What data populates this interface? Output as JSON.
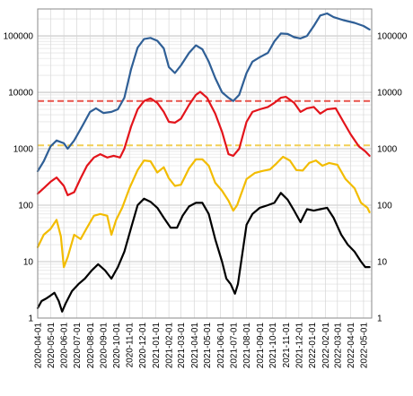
{
  "chart_data": {
    "type": "line",
    "title": "",
    "xlabel": "",
    "ylabel": "",
    "y_scale": "log",
    "ylim": [
      1,
      300000
    ],
    "xlim": [
      "2020-04-01",
      "2022-05-20"
    ],
    "y_ticks": [
      1,
      10,
      100,
      1000,
      10000,
      100000
    ],
    "y_tick_labels": [
      "1",
      "10",
      "100",
      "1000",
      "10000",
      "100000"
    ],
    "y_ticks_both_sides": true,
    "grid": true,
    "legend": "none",
    "x_tick_labels": [
      "2020-04-01",
      "2020-05-01",
      "2020-06-01",
      "2020-07-01",
      "2020-08-01",
      "2020-09-01",
      "2020-10-01",
      "2020-11-01",
      "2020-12-01",
      "2021-01-01",
      "2021-02-01",
      "2021-03-01",
      "2021-04-01",
      "2021-05-01",
      "2021-06-01",
      "2021-07-01",
      "2021-08-01",
      "2021-09-01",
      "2021-10-01",
      "2021-11-01",
      "2021-12-01",
      "2022-01-01",
      "2022-02-01",
      "2022-03-01",
      "2022-04-01",
      "2022-05-01"
    ],
    "reference_lines": [
      {
        "y": 7000,
        "color": "#e8524a",
        "style": "dashed"
      },
      {
        "y": 1150,
        "color": "#f2cf55",
        "style": "dashed"
      }
    ],
    "series": [
      {
        "color": "#2f5f96",
        "points": [
          [
            "2020-04-01",
            400
          ],
          [
            "2020-04-15",
            600
          ],
          [
            "2020-05-01",
            1100
          ],
          [
            "2020-05-15",
            1400
          ],
          [
            "2020-06-01",
            1250
          ],
          [
            "2020-06-10",
            1000
          ],
          [
            "2020-06-25",
            1400
          ],
          [
            "2020-07-15",
            2600
          ],
          [
            "2020-08-01",
            4500
          ],
          [
            "2020-08-15",
            5200
          ],
          [
            "2020-09-01",
            4300
          ],
          [
            "2020-09-20",
            4500
          ],
          [
            "2020-10-05",
            5000
          ],
          [
            "2020-10-20",
            8000
          ],
          [
            "2020-11-05",
            26000
          ],
          [
            "2020-11-20",
            62000
          ],
          [
            "2020-12-05",
            88000
          ],
          [
            "2020-12-20",
            92000
          ],
          [
            "2021-01-05",
            82000
          ],
          [
            "2021-01-20",
            60000
          ],
          [
            "2021-02-01",
            28000
          ],
          [
            "2021-02-15",
            22000
          ],
          [
            "2021-03-01",
            30000
          ],
          [
            "2021-03-20",
            50000
          ],
          [
            "2021-04-05",
            68000
          ],
          [
            "2021-04-20",
            58000
          ],
          [
            "2021-05-05",
            35000
          ],
          [
            "2021-05-20",
            18000
          ],
          [
            "2021-06-05",
            10000
          ],
          [
            "2021-06-20",
            8000
          ],
          [
            "2021-07-01",
            7000
          ],
          [
            "2021-07-15",
            9000
          ],
          [
            "2021-08-01",
            22000
          ],
          [
            "2021-08-15",
            35000
          ],
          [
            "2021-09-01",
            42000
          ],
          [
            "2021-09-20",
            50000
          ],
          [
            "2021-10-05",
            80000
          ],
          [
            "2021-10-20",
            110000
          ],
          [
            "2021-11-05",
            108000
          ],
          [
            "2021-11-20",
            95000
          ],
          [
            "2021-12-05",
            90000
          ],
          [
            "2021-12-20",
            100000
          ],
          [
            "2022-01-05",
            150000
          ],
          [
            "2022-01-20",
            230000
          ],
          [
            "2022-02-05",
            250000
          ],
          [
            "2022-02-20",
            215000
          ],
          [
            "2022-03-15",
            190000
          ],
          [
            "2022-04-10",
            170000
          ],
          [
            "2022-05-01",
            150000
          ],
          [
            "2022-05-15",
            130000
          ]
        ]
      },
      {
        "color": "#e3141b",
        "points": [
          [
            "2020-04-01",
            160
          ],
          [
            "2020-04-15",
            200
          ],
          [
            "2020-05-01",
            260
          ],
          [
            "2020-05-15",
            310
          ],
          [
            "2020-06-01",
            220
          ],
          [
            "2020-06-10",
            150
          ],
          [
            "2020-06-25",
            170
          ],
          [
            "2020-07-10",
            300
          ],
          [
            "2020-07-25",
            500
          ],
          [
            "2020-08-10",
            700
          ],
          [
            "2020-08-25",
            800
          ],
          [
            "2020-09-10",
            700
          ],
          [
            "2020-09-25",
            750
          ],
          [
            "2020-10-10",
            700
          ],
          [
            "2020-10-20",
            1000
          ],
          [
            "2020-11-05",
            2500
          ],
          [
            "2020-11-20",
            5000
          ],
          [
            "2020-12-05",
            7000
          ],
          [
            "2020-12-20",
            7800
          ],
          [
            "2021-01-05",
            6500
          ],
          [
            "2021-01-20",
            4500
          ],
          [
            "2021-02-01",
            3000
          ],
          [
            "2021-02-15",
            2900
          ],
          [
            "2021-03-01",
            3400
          ],
          [
            "2021-03-20",
            6000
          ],
          [
            "2021-04-05",
            9000
          ],
          [
            "2021-04-15",
            10200
          ],
          [
            "2021-05-01",
            8000
          ],
          [
            "2021-05-20",
            4200
          ],
          [
            "2021-06-05",
            2000
          ],
          [
            "2021-06-20",
            800
          ],
          [
            "2021-07-01",
            750
          ],
          [
            "2021-07-15",
            1000
          ],
          [
            "2021-08-01",
            3000
          ],
          [
            "2021-08-15",
            4500
          ],
          [
            "2021-09-01",
            5000
          ],
          [
            "2021-09-20",
            5500
          ],
          [
            "2021-10-05",
            6500
          ],
          [
            "2021-10-20",
            8000
          ],
          [
            "2021-11-01",
            8300
          ],
          [
            "2021-11-20",
            6500
          ],
          [
            "2021-12-05",
            4500
          ],
          [
            "2021-12-20",
            5200
          ],
          [
            "2022-01-05",
            5500
          ],
          [
            "2022-01-20",
            4200
          ],
          [
            "2022-02-05",
            5000
          ],
          [
            "2022-02-25",
            5200
          ],
          [
            "2022-03-15",
            3000
          ],
          [
            "2022-04-01",
            1800
          ],
          [
            "2022-04-20",
            1100
          ],
          [
            "2022-05-05",
            900
          ],
          [
            "2022-05-15",
            750
          ]
        ]
      },
      {
        "color": "#f2bc00",
        "points": [
          [
            "2020-04-01",
            18
          ],
          [
            "2020-04-15",
            30
          ],
          [
            "2020-05-01",
            38
          ],
          [
            "2020-05-15",
            55
          ],
          [
            "2020-05-25",
            28
          ],
          [
            "2020-06-01",
            8
          ],
          [
            "2020-06-10",
            12
          ],
          [
            "2020-06-25",
            30
          ],
          [
            "2020-07-10",
            25
          ],
          [
            "2020-07-25",
            40
          ],
          [
            "2020-08-10",
            65
          ],
          [
            "2020-08-25",
            70
          ],
          [
            "2020-09-10",
            65
          ],
          [
            "2020-09-20",
            30
          ],
          [
            "2020-10-01",
            55
          ],
          [
            "2020-10-15",
            90
          ],
          [
            "2020-11-01",
            200
          ],
          [
            "2020-11-20",
            420
          ],
          [
            "2020-12-05",
            620
          ],
          [
            "2020-12-20",
            600
          ],
          [
            "2021-01-05",
            380
          ],
          [
            "2021-01-20",
            470
          ],
          [
            "2021-02-01",
            300
          ],
          [
            "2021-02-15",
            220
          ],
          [
            "2021-03-01",
            230
          ],
          [
            "2021-03-20",
            450
          ],
          [
            "2021-04-05",
            650
          ],
          [
            "2021-04-20",
            650
          ],
          [
            "2021-05-05",
            500
          ],
          [
            "2021-05-20",
            250
          ],
          [
            "2021-06-05",
            180
          ],
          [
            "2021-06-20",
            120
          ],
          [
            "2021-07-01",
            80
          ],
          [
            "2021-07-10",
            100
          ],
          [
            "2021-08-01",
            290
          ],
          [
            "2021-08-20",
            370
          ],
          [
            "2021-09-05",
            400
          ],
          [
            "2021-09-25",
            430
          ],
          [
            "2021-10-10",
            550
          ],
          [
            "2021-10-25",
            720
          ],
          [
            "2021-11-10",
            620
          ],
          [
            "2021-11-25",
            420
          ],
          [
            "2021-12-10",
            410
          ],
          [
            "2021-12-25",
            560
          ],
          [
            "2022-01-10",
            620
          ],
          [
            "2022-01-25",
            500
          ],
          [
            "2022-02-10",
            560
          ],
          [
            "2022-03-01",
            520
          ],
          [
            "2022-03-20",
            290
          ],
          [
            "2022-04-10",
            200
          ],
          [
            "2022-04-25",
            110
          ],
          [
            "2022-05-10",
            90
          ],
          [
            "2022-05-15",
            75
          ]
        ]
      },
      {
        "color": "#000000",
        "points": [
          [
            "2020-04-01",
            1.5
          ],
          [
            "2020-04-10",
            2
          ],
          [
            "2020-04-20",
            2.2
          ],
          [
            "2020-05-01",
            2.5
          ],
          [
            "2020-05-10",
            2.8
          ],
          [
            "2020-05-20",
            2
          ],
          [
            "2020-05-28",
            1.3
          ],
          [
            "2020-06-05",
            1.8
          ],
          [
            "2020-06-20",
            3
          ],
          [
            "2020-07-05",
            4
          ],
          [
            "2020-07-20",
            5
          ],
          [
            "2020-08-05",
            7
          ],
          [
            "2020-08-20",
            9
          ],
          [
            "2020-09-05",
            7
          ],
          [
            "2020-09-20",
            5
          ],
          [
            "2020-10-05",
            8
          ],
          [
            "2020-10-20",
            15
          ],
          [
            "2020-11-05",
            40
          ],
          [
            "2020-11-20",
            100
          ],
          [
            "2020-12-05",
            130
          ],
          [
            "2020-12-20",
            115
          ],
          [
            "2021-01-05",
            90
          ],
          [
            "2021-01-20",
            60
          ],
          [
            "2021-02-05",
            40
          ],
          [
            "2021-02-20",
            40
          ],
          [
            "2021-03-05",
            65
          ],
          [
            "2021-03-20",
            95
          ],
          [
            "2021-04-05",
            110
          ],
          [
            "2021-04-20",
            110
          ],
          [
            "2021-05-05",
            70
          ],
          [
            "2021-05-20",
            25
          ],
          [
            "2021-06-05",
            10
          ],
          [
            "2021-06-15",
            5
          ],
          [
            "2021-06-25",
            4
          ],
          [
            "2021-07-05",
            2.7
          ],
          [
            "2021-07-12",
            4
          ],
          [
            "2021-08-01",
            45
          ],
          [
            "2021-08-15",
            70
          ],
          [
            "2021-09-01",
            90
          ],
          [
            "2021-09-20",
            100
          ],
          [
            "2021-10-05",
            110
          ],
          [
            "2021-10-20",
            165
          ],
          [
            "2021-11-05",
            125
          ],
          [
            "2021-11-20",
            80
          ],
          [
            "2021-12-05",
            50
          ],
          [
            "2021-12-20",
            85
          ],
          [
            "2022-01-05",
            80
          ],
          [
            "2022-01-20",
            85
          ],
          [
            "2022-02-05",
            90
          ],
          [
            "2022-02-20",
            60
          ],
          [
            "2022-03-10",
            30
          ],
          [
            "2022-03-25",
            20
          ],
          [
            "2022-04-10",
            15
          ],
          [
            "2022-04-25",
            10
          ],
          [
            "2022-05-05",
            8
          ],
          [
            "2022-05-15",
            8
          ]
        ]
      }
    ]
  }
}
